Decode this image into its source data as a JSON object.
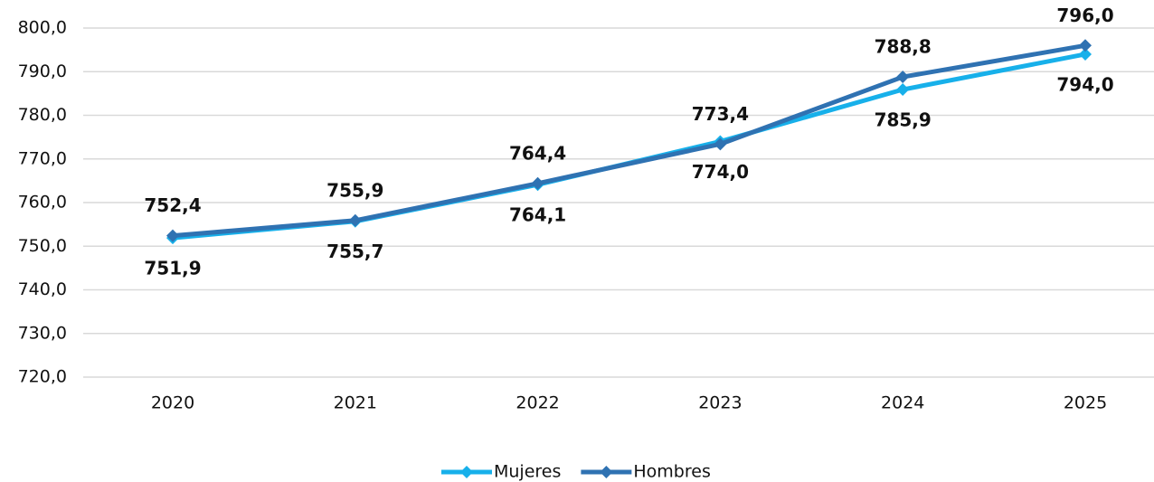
{
  "chart_data": {
    "type": "line",
    "categories": [
      "2020",
      "2021",
      "2022",
      "2023",
      "2024",
      "2025"
    ],
    "series": [
      {
        "name": "Mujeres",
        "color": "#17b0ea",
        "values": [
          751.9,
          755.7,
          764.1,
          774.0,
          785.9,
          794.0
        ],
        "value_labels": [
          "751,9",
          "755,7",
          "764,1",
          "774,0",
          "785,9",
          "794,0"
        ]
      },
      {
        "name": "Hombres",
        "color": "#2f72b2",
        "values": [
          752.4,
          755.9,
          764.4,
          773.4,
          788.8,
          796.0
        ],
        "value_labels": [
          "752,4",
          "755,9",
          "764,4",
          "773,4",
          "788,8",
          "796,0"
        ]
      }
    ],
    "ylim": [
      720,
      800
    ],
    "yticks": [
      {
        "value": 720,
        "label": "720,0"
      },
      {
        "value": 730,
        "label": "730,0"
      },
      {
        "value": 740,
        "label": "740,0"
      },
      {
        "value": 750,
        "label": "750,0"
      },
      {
        "value": 760,
        "label": "760,0"
      },
      {
        "value": 770,
        "label": "770,0"
      },
      {
        "value": 780,
        "label": "780,0"
      },
      {
        "value": 790,
        "label": "790,0"
      },
      {
        "value": 800,
        "label": "800,0"
      }
    ],
    "grid": true,
    "legend": "bottom"
  }
}
